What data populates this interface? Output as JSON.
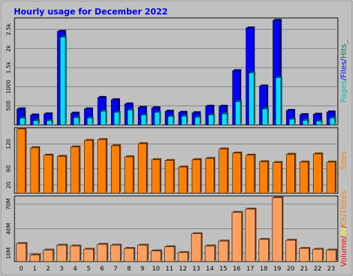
{
  "chart_data": {
    "type": "bar",
    "title": "Hourly usage for December 2022",
    "categories": [
      "0",
      "1",
      "2",
      "3",
      "4",
      "5",
      "6",
      "7",
      "8",
      "9",
      "10",
      "11",
      "12",
      "13",
      "14",
      "15",
      "16",
      "17",
      "18",
      "19",
      "20",
      "21",
      "22",
      "23"
    ],
    "colors": {
      "background": "#ffffff",
      "frame": "#c0c0c0",
      "panel": "#c0c0c0",
      "title": "#0000ff",
      "pages": "#0000ff",
      "files": "#0000ff",
      "hits": "#008040",
      "sites": "#ff8000",
      "volume": "#ff0000",
      "in": "#ffff00",
      "out": "#ff8000",
      "files_bar": "#00e0ff",
      "hits_bar": "#0000ff",
      "sites_bar": "#ff8000",
      "volume_bar": "#ff6060",
      "volume_in_bar": "#ffa060"
    },
    "panels": [
      {
        "id": "hits",
        "ylim": [
          0,
          2800
        ],
        "ticks": [
          500,
          1000,
          1500,
          2000,
          2500
        ],
        "tick_labels": [
          "500",
          "1000",
          "1.5k",
          "2k",
          "2.5k"
        ],
        "side_label": [
          {
            "text": "Pages",
            "color": "#00c0c0"
          },
          {
            "text": "/",
            "color": "#0000ff"
          },
          {
            "text": "Files",
            "color": "#0000ff"
          },
          {
            "text": "/",
            "color": "#0000ff"
          },
          {
            "text": "Hits",
            "color": "#008040"
          },
          {
            "text": "_",
            "color": "#008040"
          }
        ],
        "series": [
          {
            "name": "Hits",
            "values": [
              420,
              260,
              290,
              2450,
              310,
              420,
              720,
              660,
              550,
              460,
              450,
              360,
              330,
              320,
              490,
              490,
              1420,
              2540,
              1020,
              2740,
              380,
              270,
              280,
              340
            ]
          },
          {
            "name": "Files",
            "values": [
              180,
              110,
              110,
              2300,
              190,
              180,
              360,
              330,
              390,
              260,
              330,
              220,
              230,
              200,
              260,
              290,
              610,
              1360,
              420,
              1240,
              150,
              120,
              100,
              180
            ]
          }
        ]
      },
      {
        "id": "sites",
        "ylim": [
          0,
          160
        ],
        "ticks": [
          20,
          60,
          120
        ],
        "tick_labels": [
          "20",
          "60",
          "120"
        ],
        "side_label": [
          {
            "text": "Sites",
            "color": "#ff8000"
          }
        ],
        "series": [
          {
            "name": "Sites",
            "values": [
              157,
              111,
              93,
              90,
              113,
              129,
              131,
              116,
              89,
              121,
              82,
              80,
              64,
              82,
              85,
              108,
              98,
              93,
              77,
              75,
              95,
              76,
              96,
              76
            ]
          }
        ]
      },
      {
        "id": "volume",
        "ylim": [
          0,
          80
        ],
        "ticks": [
          10,
          40,
          70
        ],
        "tick_labels": [
          "10M",
          "40M",
          "70M"
        ],
        "side_label": [
          {
            "text": "Volume",
            "color": "#ff0000"
          },
          {
            "text": "/",
            "color": "#ff0000"
          },
          {
            "text": "IN",
            "color": "#ffff00"
          },
          {
            "text": "/",
            "color": "#ff0000"
          },
          {
            "text": "OUT",
            "color": "#ff8000"
          },
          {
            "text": "Sites",
            "color": "#ff8000"
          }
        ],
        "series": [
          {
            "name": "Volume",
            "values": [
              22,
              8,
              14,
              20,
              19,
              15,
              21,
              20,
              16,
              20,
              13,
              18,
              11,
              34,
              19,
              25,
              60,
              64,
              27,
              78,
              26,
              16,
              15,
              14
            ]
          }
        ]
      }
    ]
  }
}
